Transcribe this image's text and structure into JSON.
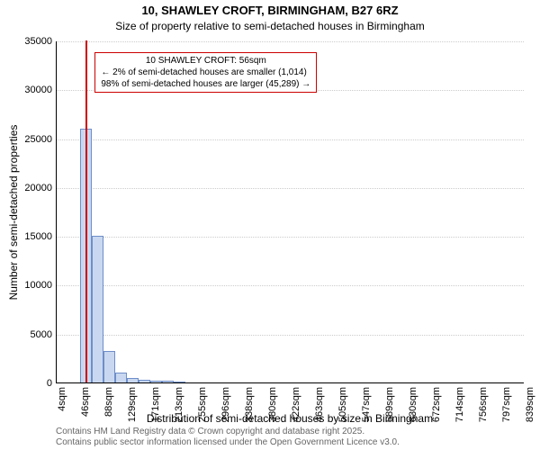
{
  "title_line1": "10, SHAWLEY CROFT, BIRMINGHAM, B27 6RZ",
  "title_line2": "Size of property relative to semi-detached houses in Birmingham",
  "title_fontsize": 13,
  "subtitle_fontsize": 12,
  "ylabel": "Number of semi-detached properties",
  "xlabel": "Distribution of semi-detached houses by size in Birmingham",
  "axis_label_fontsize": 12,
  "tick_fontsize": 11,
  "footer_fontsize": 10,
  "chart": {
    "type": "histogram",
    "ylim": [
      0,
      35000
    ],
    "yticks": [
      0,
      5000,
      10000,
      15000,
      20000,
      25000,
      30000,
      35000
    ],
    "xticks": [
      "4sqm",
      "46sqm",
      "88sqm",
      "129sqm",
      "171sqm",
      "213sqm",
      "255sqm",
      "296sqm",
      "338sqm",
      "380sqm",
      "422sqm",
      "463sqm",
      "505sqm",
      "547sqm",
      "589sqm",
      "630sqm",
      "672sqm",
      "714sqm",
      "756sqm",
      "797sqm",
      "839sqm"
    ],
    "xtick_values": [
      4,
      46,
      88,
      129,
      171,
      213,
      255,
      296,
      338,
      380,
      422,
      463,
      505,
      547,
      589,
      630,
      672,
      714,
      756,
      797,
      839
    ],
    "xlim": [
      4,
      839
    ],
    "bars": [
      {
        "x0": 46,
        "x1": 67,
        "value": 26000
      },
      {
        "x0": 67,
        "x1": 88,
        "value": 15000
      },
      {
        "x0": 88,
        "x1": 109,
        "value": 3200
      },
      {
        "x0": 109,
        "x1": 129,
        "value": 1000
      },
      {
        "x0": 129,
        "x1": 150,
        "value": 500
      },
      {
        "x0": 150,
        "x1": 171,
        "value": 300
      },
      {
        "x0": 171,
        "x1": 192,
        "value": 200
      },
      {
        "x0": 192,
        "x1": 213,
        "value": 150
      },
      {
        "x0": 213,
        "x1": 234,
        "value": 100
      }
    ],
    "bar_fill": "#c9d8f0",
    "bar_stroke": "#6e8ec9",
    "grid_color": "#cccccc",
    "background": "#ffffff",
    "marker_line": {
      "x": 56,
      "color": "#cc0000"
    },
    "annotation": {
      "line1": "10 SHAWLEY CROFT: 56sqm",
      "line2": "← 2% of semi-detached houses are smaller (1,014)",
      "line3": "98% of semi-detached houses are larger (45,289) →",
      "border_color": "#cc0000",
      "text_color": "#000000",
      "bg": "#ffffff",
      "fontsize": 10
    }
  },
  "footer_line1": "Contains HM Land Registry data © Crown copyright and database right 2025.",
  "footer_line2": "Contains public sector information licensed under the Open Government Licence v3.0.",
  "footer_color": "#666666"
}
